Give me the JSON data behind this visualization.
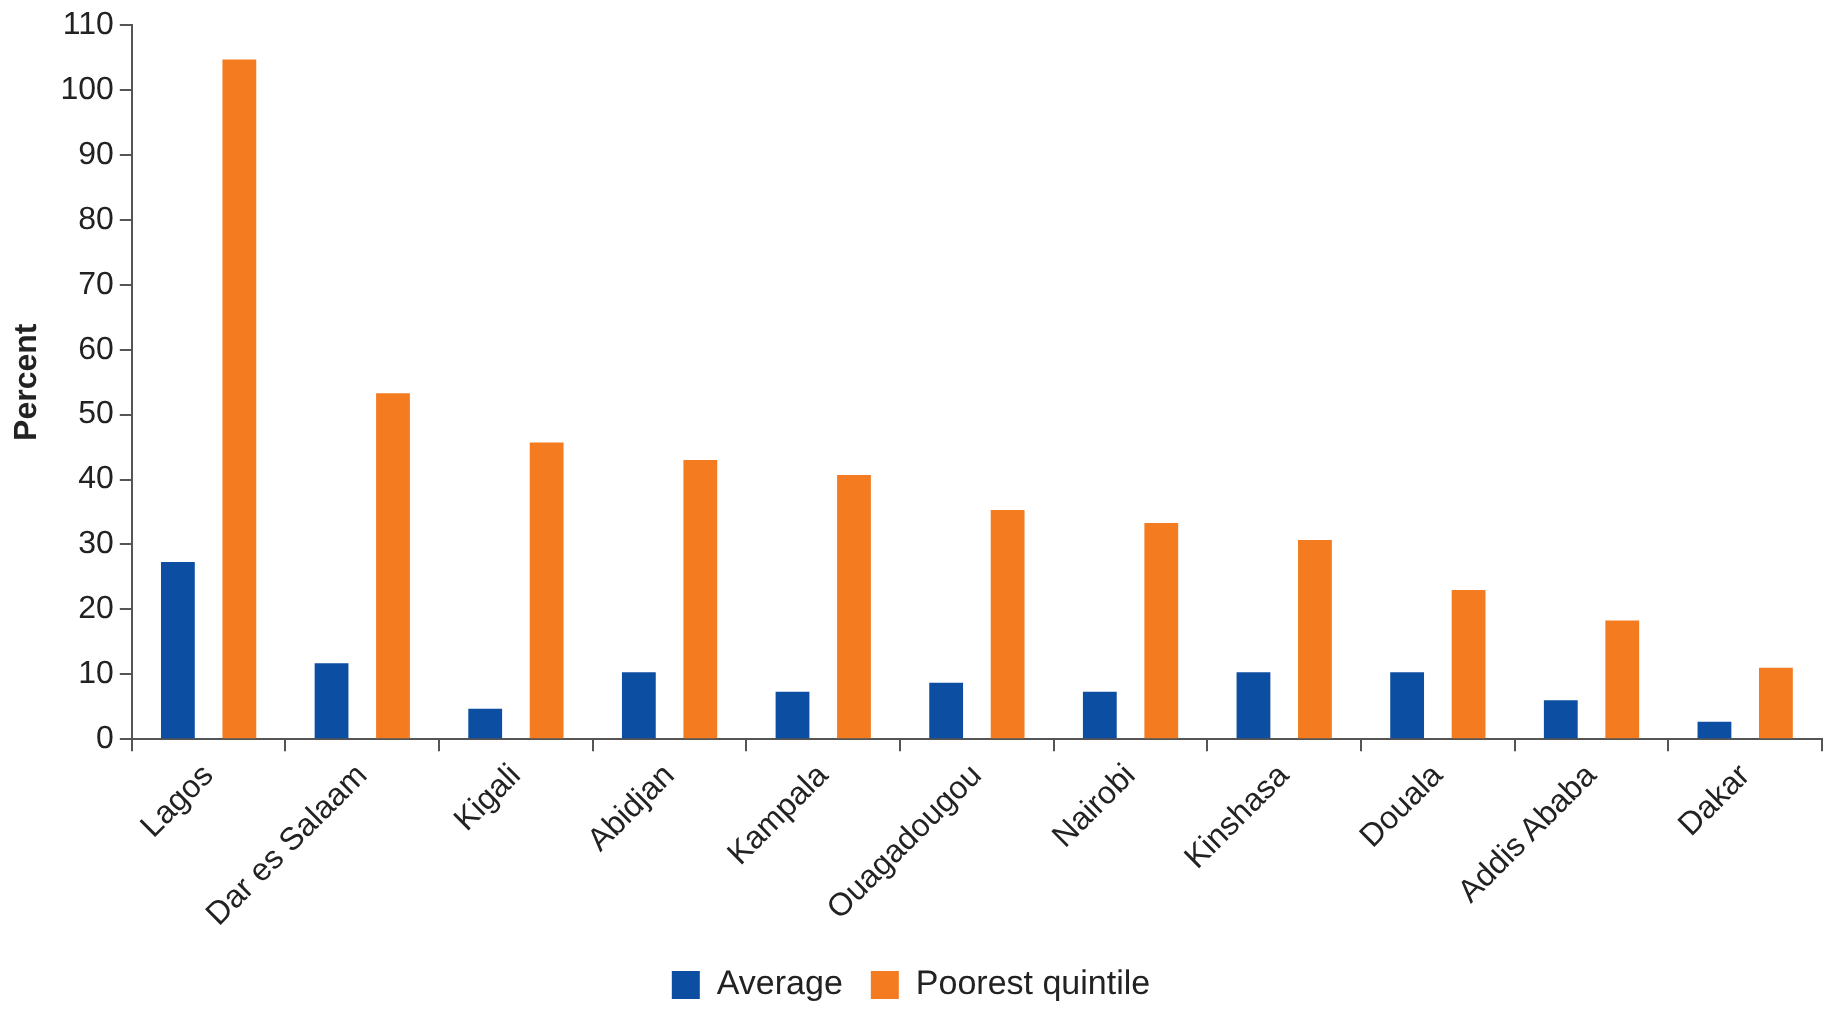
{
  "chart_data": {
    "type": "bar",
    "ylabel": "Percent",
    "categories": [
      "Lagos",
      "Dar es Salaam",
      "Kigali",
      "Abidjan",
      "Kampala",
      "Ouagadougou",
      "Nairobi",
      "Kinshasa",
      "Douala",
      "Addis Ababa",
      "Dakar"
    ],
    "series": [
      {
        "name": "Average",
        "color": "#0b4ea2",
        "values": [
          27.3,
          11.7,
          4.7,
          10.3,
          7.3,
          8.7,
          7.3,
          10.3,
          10.3,
          6,
          2.7
        ]
      },
      {
        "name": "Poorest quintile",
        "color": "#f47b20",
        "values": [
          104.7,
          53.3,
          45.7,
          43,
          40.7,
          35.3,
          33.3,
          30.7,
          23,
          18.3,
          11
        ]
      }
    ],
    "ylim": [
      0,
      110
    ],
    "yticks": [
      0,
      10,
      20,
      30,
      40,
      50,
      60,
      70,
      80,
      90,
      100,
      110
    ],
    "grid": false,
    "legend": "bottom"
  }
}
